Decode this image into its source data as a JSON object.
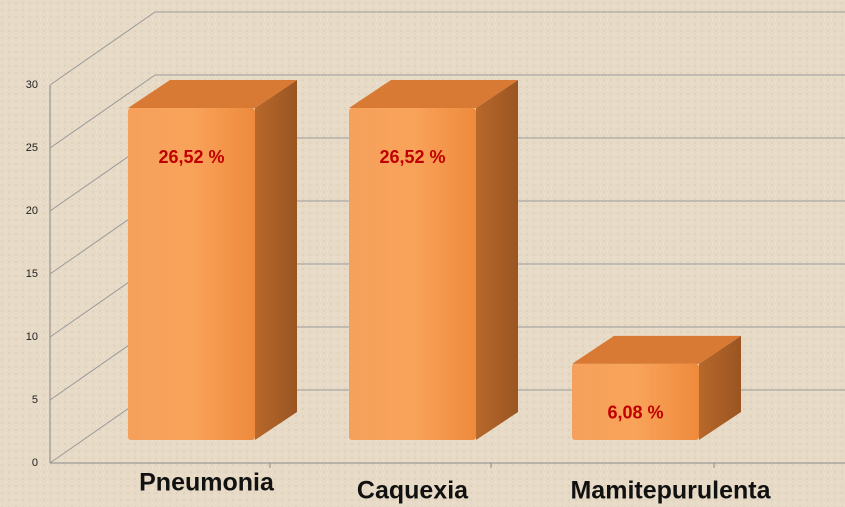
{
  "chart_data": {
    "type": "bar3d",
    "categories": [
      "Pneumonia",
      "Caquexia",
      "Mamitepurulenta"
    ],
    "values": [
      26.52,
      26.52,
      6.08
    ],
    "value_labels": [
      "26,52 %",
      "26,52 %",
      "6,08 %"
    ],
    "color": "#f79646",
    "ylim": [
      0,
      30
    ],
    "yticks": [
      0,
      5,
      10,
      15,
      20,
      25,
      30
    ],
    "grid": true
  }
}
